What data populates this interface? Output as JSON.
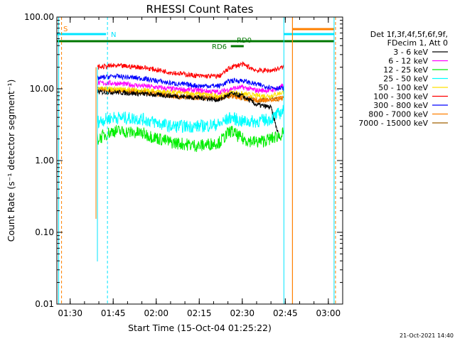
{
  "chart_data": {
    "type": "line",
    "title": "RHESSI Count Rates",
    "xlabel": "Start Time (15-Oct-04 01:25:22)",
    "ylabel": "Count Rate (s⁻¹ detector segment⁻¹)",
    "yscale": "log",
    "ylim": [
      0.01,
      100
    ],
    "xlim": [
      "01:25:22",
      "03:05:00"
    ],
    "x_ticks": [
      "01:30",
      "01:45",
      "02:00",
      "02:15",
      "02:30",
      "02:45",
      "03:00"
    ],
    "y_ticks": [
      "0.01",
      "0.10",
      "1.00",
      "10.00",
      "100.00"
    ],
    "grid": false,
    "legend_position": "right",
    "legend_header": [
      "Det 1f,3f,4f,5f,6f,9f,",
      "FDecim 1, Att 0"
    ],
    "timestamp": "21-Oct-2021 14:40",
    "flag_labels": {
      "S": "S",
      "N": "N",
      "RD0": "RD0",
      "RD6": "RD6"
    },
    "flag_colors": {
      "S": "#ff8000",
      "N": "#00e5ff",
      "RD": "#007700"
    },
    "series": [
      {
        "name": "3 - 6 keV",
        "color": "#000000",
        "x": [
          "01:39:30",
          "01:45:00",
          "01:55:00",
          "02:05:00",
          "02:15:00",
          "02:22:00",
          "02:26:00",
          "02:30:00",
          "02:35:00",
          "02:40:00",
          "02:43:00"
        ],
        "y": [
          9.0,
          9.0,
          8.5,
          8.0,
          7.5,
          7.0,
          8.5,
          8.0,
          6.0,
          5.5,
          2.0
        ]
      },
      {
        "name": "6 - 12 keV",
        "color": "#ff00ff",
        "x": [
          "01:39:30",
          "01:45:00",
          "01:55:00",
          "02:05:00",
          "02:15:00",
          "02:22:00",
          "02:26:00",
          "02:30:00",
          "02:35:00",
          "02:40:00",
          "02:44:30"
        ],
        "y": [
          12.0,
          12.0,
          11.0,
          10.0,
          9.5,
          9.0,
          10.0,
          10.5,
          9.5,
          9.5,
          11.0
        ]
      },
      {
        "name": "12 - 25 keV",
        "color": "#00ee00",
        "x": [
          "01:39:30",
          "01:45:00",
          "01:55:00",
          "02:05:00",
          "02:15:00",
          "02:22:00",
          "02:26:00",
          "02:30:00",
          "02:35:00",
          "02:40:00",
          "02:44:30"
        ],
        "y": [
          2.0,
          2.6,
          2.4,
          1.8,
          1.6,
          1.8,
          2.6,
          2.0,
          1.8,
          2.0,
          2.4
        ]
      },
      {
        "name": "25 - 50 keV",
        "color": "#00ffff",
        "x": [
          "01:39:30",
          "01:45:00",
          "01:55:00",
          "02:05:00",
          "02:15:00",
          "02:22:00",
          "02:26:00",
          "02:30:00",
          "02:35:00",
          "02:40:00",
          "02:44:30"
        ],
        "y": [
          3.5,
          4.0,
          3.8,
          3.0,
          3.0,
          3.2,
          4.0,
          3.5,
          3.5,
          3.8,
          5.0
        ]
      },
      {
        "name": "50 - 100 keV",
        "color": "#ffe000",
        "x": [
          "01:39:30",
          "01:45:00",
          "01:55:00",
          "02:05:00",
          "02:15:00",
          "02:22:00",
          "02:26:00",
          "02:30:00",
          "02:35:00",
          "02:40:00",
          "02:44:30"
        ],
        "y": [
          10.0,
          10.0,
          9.5,
          9.0,
          8.5,
          8.0,
          9.0,
          8.5,
          8.0,
          8.0,
          9.0
        ]
      },
      {
        "name": "100 - 300 keV",
        "color": "#ff0000",
        "x": [
          "01:39:30",
          "01:45:00",
          "01:55:00",
          "02:05:00",
          "02:15:00",
          "02:22:00",
          "02:26:00",
          "02:30:00",
          "02:35:00",
          "02:40:00",
          "02:44:30"
        ],
        "y": [
          20.0,
          21.0,
          20.0,
          17.0,
          15.0,
          15.0,
          20.0,
          22.0,
          18.0,
          18.0,
          20.0
        ]
      },
      {
        "name": "300 - 800 keV",
        "color": "#0000ff",
        "x": [
          "01:39:30",
          "01:45:00",
          "01:55:00",
          "02:05:00",
          "02:15:00",
          "02:22:00",
          "02:26:00",
          "02:30:00",
          "02:35:00",
          "02:40:00",
          "02:44:30"
        ],
        "y": [
          14.0,
          15.0,
          14.0,
          12.0,
          11.0,
          11.0,
          13.0,
          13.0,
          11.5,
          10.5,
          10.0
        ]
      },
      {
        "name": "800 - 7000 keV",
        "color": "#ff8000",
        "x": [
          "01:39:30",
          "01:45:00",
          "01:55:00",
          "02:05:00",
          "02:15:00",
          "02:22:00",
          "02:26:00",
          "02:30:00",
          "02:35:00",
          "02:40:00",
          "02:44:30"
        ],
        "y": [
          10.0,
          9.5,
          9.0,
          8.0,
          7.5,
          7.5,
          8.0,
          7.5,
          7.0,
          7.0,
          7.5
        ]
      },
      {
        "name": "7000 - 15000 keV",
        "color": "#a06000",
        "x": [
          "01:39:30",
          "01:45:00",
          "01:55:00",
          "02:05:00",
          "02:15:00",
          "02:22:00",
          "02:26:00",
          "02:30:00",
          "02:35:00",
          "02:40:00",
          "02:44:30"
        ],
        "y": [
          10.0,
          9.5,
          9.0,
          8.0,
          7.5,
          7.5,
          8.0,
          7.5,
          7.0,
          7.0,
          7.5
        ]
      }
    ]
  }
}
